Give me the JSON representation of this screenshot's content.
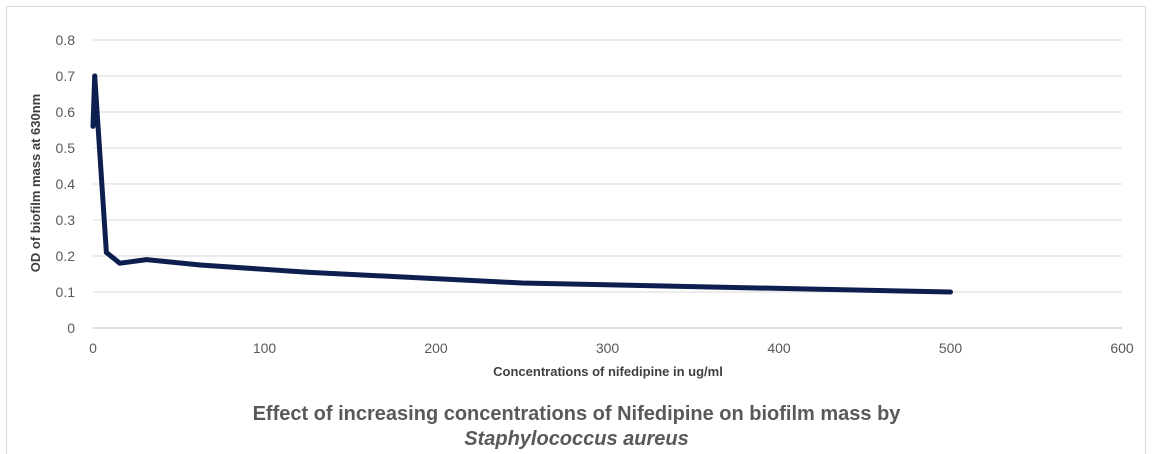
{
  "chart_data": {
    "type": "line",
    "title": "Effect of increasing concentrations of Nifedipine on biofilm mass by",
    "subtitle": "Staphylococcus aureus",
    "xlabel": "Concentrations of nifedipine in ug/ml",
    "ylabel": "OD of biofilm mass at 630nm",
    "xlim": [
      0,
      600
    ],
    "ylim": [
      0,
      0.8
    ],
    "x_ticks": [
      "0",
      "100",
      "200",
      "300",
      "400",
      "500",
      "600"
    ],
    "y_ticks": [
      "0",
      "0.1",
      "0.2",
      "0.3",
      "0.4",
      "0.5",
      "0.6",
      "0.7",
      "0.8"
    ],
    "grid": true,
    "legend": "none",
    "series": [
      {
        "color": "#0d1f4f",
        "x": [
          0,
          1,
          7.8,
          15.6,
          31.25,
          62.5,
          125,
          250,
          500
        ],
        "y": [
          0.56,
          0.7,
          0.21,
          0.18,
          0.19,
          0.175,
          0.155,
          0.125,
          0.1
        ]
      }
    ]
  }
}
